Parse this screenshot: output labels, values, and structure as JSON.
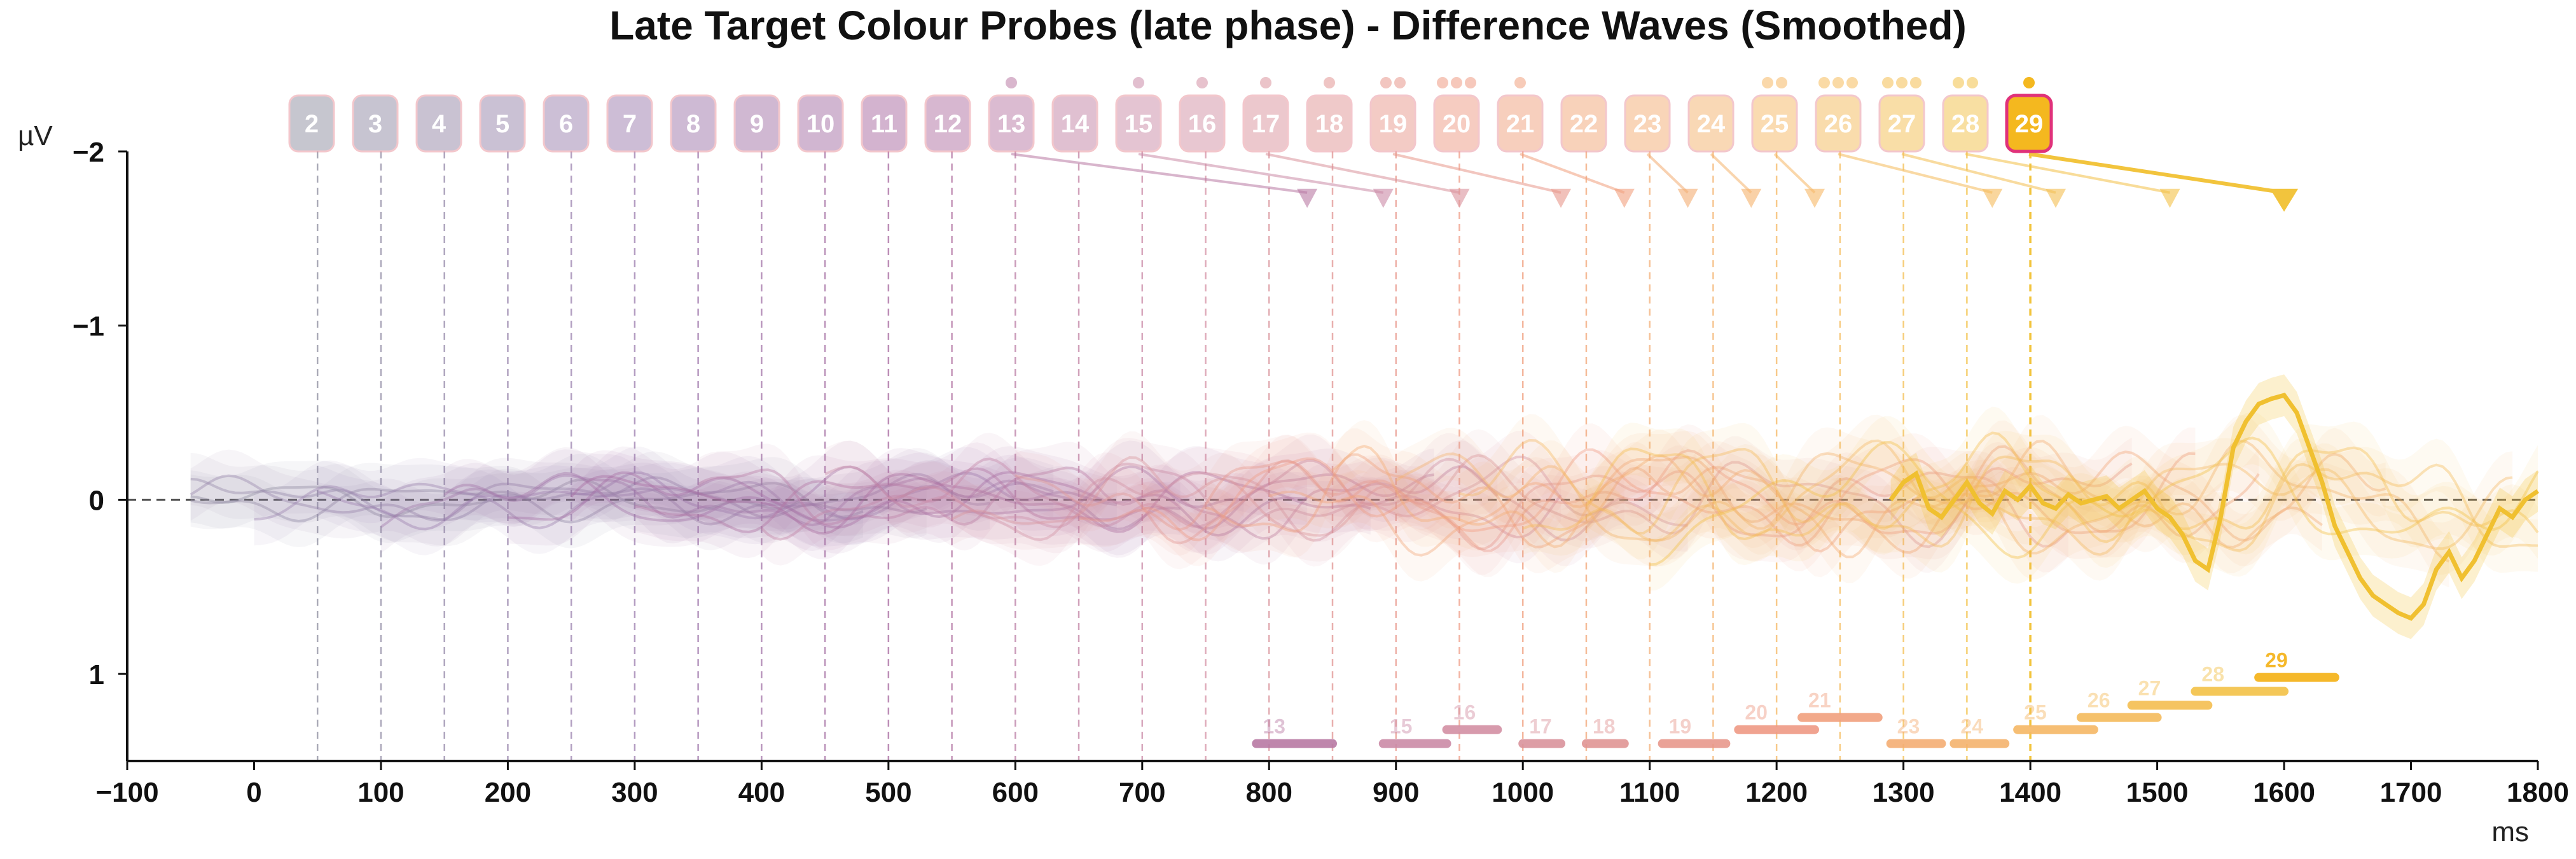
{
  "chart_data": {
    "type": "line",
    "title": "Late Target Colour Probes (late phase) - Difference Waves (Smoothed)",
    "ylabel": "µV",
    "xlabel": "ms",
    "xlim": [
      -100,
      1800
    ],
    "ylim": [
      1.5,
      -2.0
    ],
    "y_inverted": true,
    "x_ticks": [
      -100,
      0,
      100,
      200,
      300,
      400,
      500,
      600,
      700,
      800,
      900,
      1000,
      1100,
      1200,
      1300,
      1400,
      1500,
      1600,
      1700,
      1800
    ],
    "x_tick_labels": [
      "−100",
      "0",
      "100",
      "200",
      "300",
      "400",
      "500",
      "600",
      "700",
      "800",
      "900",
      "1000",
      "1100",
      "1200",
      "1300",
      "1400",
      "1500",
      "1600",
      "1700",
      "1800"
    ],
    "y_ticks": [
      -2,
      -1,
      0,
      1
    ],
    "y_tick_labels": [
      "−2",
      "−1",
      "0",
      "1"
    ],
    "zero_line": true,
    "probes": [
      {
        "label": "2",
        "onset_ms": 50
      },
      {
        "label": "3",
        "onset_ms": 100
      },
      {
        "label": "4",
        "onset_ms": 150
      },
      {
        "label": "5",
        "onset_ms": 200
      },
      {
        "label": "6",
        "onset_ms": 250
      },
      {
        "label": "7",
        "onset_ms": 300
      },
      {
        "label": "8",
        "onset_ms": 350
      },
      {
        "label": "9",
        "onset_ms": 400
      },
      {
        "label": "10",
        "onset_ms": 450
      },
      {
        "label": "11",
        "onset_ms": 500
      },
      {
        "label": "12",
        "onset_ms": 550
      },
      {
        "label": "13",
        "onset_ms": 600,
        "dots": 1
      },
      {
        "label": "14",
        "onset_ms": 650
      },
      {
        "label": "15",
        "onset_ms": 700,
        "dots": 1
      },
      {
        "label": "16",
        "onset_ms": 750,
        "dots": 1
      },
      {
        "label": "17",
        "onset_ms": 800,
        "dots": 1
      },
      {
        "label": "18",
        "onset_ms": 850,
        "dots": 1
      },
      {
        "label": "19",
        "onset_ms": 900,
        "dots": 2
      },
      {
        "label": "20",
        "onset_ms": 950,
        "dots": 3
      },
      {
        "label": "21",
        "onset_ms": 1000,
        "dots": 1
      },
      {
        "label": "22",
        "onset_ms": 1050
      },
      {
        "label": "23",
        "onset_ms": 1100
      },
      {
        "label": "24",
        "onset_ms": 1150
      },
      {
        "label": "25",
        "onset_ms": 1200,
        "dots": 2
      },
      {
        "label": "26",
        "onset_ms": 1250,
        "dots": 3
      },
      {
        "label": "27",
        "onset_ms": 1300,
        "dots": 3
      },
      {
        "label": "28",
        "onset_ms": 1350,
        "dots": 2
      },
      {
        "label": "29",
        "onset_ms": 1400,
        "dots": 1,
        "highlighted": true
      }
    ],
    "peak_markers": [
      {
        "label": "13",
        "from_ms": 600,
        "peak_ms": 830,
        "peak_uv": -1.8
      },
      {
        "label": "15",
        "from_ms": 700,
        "peak_ms": 890,
        "peak_uv": -1.8
      },
      {
        "label": "17",
        "from_ms": 800,
        "peak_ms": 950,
        "peak_uv": -1.8
      },
      {
        "label": "19",
        "from_ms": 900,
        "peak_ms": 1030,
        "peak_uv": -1.8
      },
      {
        "label": "21",
        "from_ms": 1000,
        "peak_ms": 1080,
        "peak_uv": -1.8
      },
      {
        "label": "23",
        "from_ms": 1100,
        "peak_ms": 1130,
        "peak_uv": -1.8
      },
      {
        "label": "24",
        "from_ms": 1150,
        "peak_ms": 1180,
        "peak_uv": -1.8
      },
      {
        "label": "25",
        "from_ms": 1200,
        "peak_ms": 1230,
        "peak_uv": -1.8
      },
      {
        "label": "26",
        "from_ms": 1250,
        "peak_ms": 1370,
        "peak_uv": -1.8
      },
      {
        "label": "27",
        "from_ms": 1300,
        "peak_ms": 1420,
        "peak_uv": -1.8
      },
      {
        "label": "28",
        "from_ms": 1350,
        "peak_ms": 1510,
        "peak_uv": -1.8
      },
      {
        "label": "29",
        "from_ms": 1400,
        "peak_ms": 1600,
        "peak_uv": -1.8,
        "highlighted": true
      }
    ],
    "significance_bars": [
      {
        "label": "13",
        "start_ms": 790,
        "end_ms": 850,
        "level_uv": 1.4
      },
      {
        "label": "15",
        "start_ms": 890,
        "end_ms": 940,
        "level_uv": 1.4
      },
      {
        "label": "16",
        "start_ms": 940,
        "end_ms": 980,
        "level_uv": 1.32
      },
      {
        "label": "17",
        "start_ms": 1000,
        "end_ms": 1030,
        "level_uv": 1.4
      },
      {
        "label": "18",
        "start_ms": 1050,
        "end_ms": 1080,
        "level_uv": 1.4
      },
      {
        "label": "19",
        "start_ms": 1110,
        "end_ms": 1160,
        "level_uv": 1.4
      },
      {
        "label": "20",
        "start_ms": 1170,
        "end_ms": 1230,
        "level_uv": 1.32
      },
      {
        "label": "21",
        "start_ms": 1220,
        "end_ms": 1280,
        "level_uv": 1.25
      },
      {
        "label": "23",
        "start_ms": 1290,
        "end_ms": 1330,
        "level_uv": 1.4
      },
      {
        "label": "24",
        "start_ms": 1340,
        "end_ms": 1380,
        "level_uv": 1.4
      },
      {
        "label": "25",
        "start_ms": 1390,
        "end_ms": 1450,
        "level_uv": 1.32
      },
      {
        "label": "26",
        "start_ms": 1440,
        "end_ms": 1500,
        "level_uv": 1.25
      },
      {
        "label": "27",
        "start_ms": 1480,
        "end_ms": 1540,
        "level_uv": 1.18
      },
      {
        "label": "28",
        "start_ms": 1530,
        "end_ms": 1600,
        "level_uv": 1.1
      },
      {
        "label": "29",
        "start_ms": 1580,
        "end_ms": 1640,
        "level_uv": 1.02,
        "highlighted": true
      }
    ],
    "highlight_series": {
      "label": "29",
      "x": [
        1290,
        1300,
        1310,
        1320,
        1330,
        1340,
        1350,
        1360,
        1370,
        1380,
        1390,
        1400,
        1410,
        1420,
        1430,
        1440,
        1450,
        1460,
        1470,
        1480,
        1490,
        1500,
        1510,
        1520,
        1530,
        1540,
        1550,
        1560,
        1570,
        1580,
        1590,
        1600,
        1610,
        1620,
        1630,
        1640,
        1650,
        1660,
        1670,
        1680,
        1690,
        1700,
        1710,
        1720,
        1730,
        1740,
        1750,
        1760,
        1770,
        1780,
        1790,
        1800
      ],
      "y": [
        0.0,
        -0.1,
        -0.15,
        0.05,
        0.1,
        0.0,
        -0.1,
        0.02,
        0.08,
        -0.05,
        0.0,
        -0.08,
        0.02,
        0.05,
        -0.03,
        0.02,
        0.0,
        -0.02,
        0.05,
        0.0,
        -0.05,
        0.05,
        0.1,
        0.2,
        0.35,
        0.4,
        0.1,
        -0.3,
        -0.45,
        -0.55,
        -0.58,
        -0.6,
        -0.5,
        -0.3,
        -0.1,
        0.15,
        0.3,
        0.45,
        0.55,
        0.6,
        0.65,
        0.68,
        0.6,
        0.4,
        0.3,
        0.45,
        0.35,
        0.2,
        0.05,
        0.1,
        0.0,
        -0.05
      ]
    }
  }
}
